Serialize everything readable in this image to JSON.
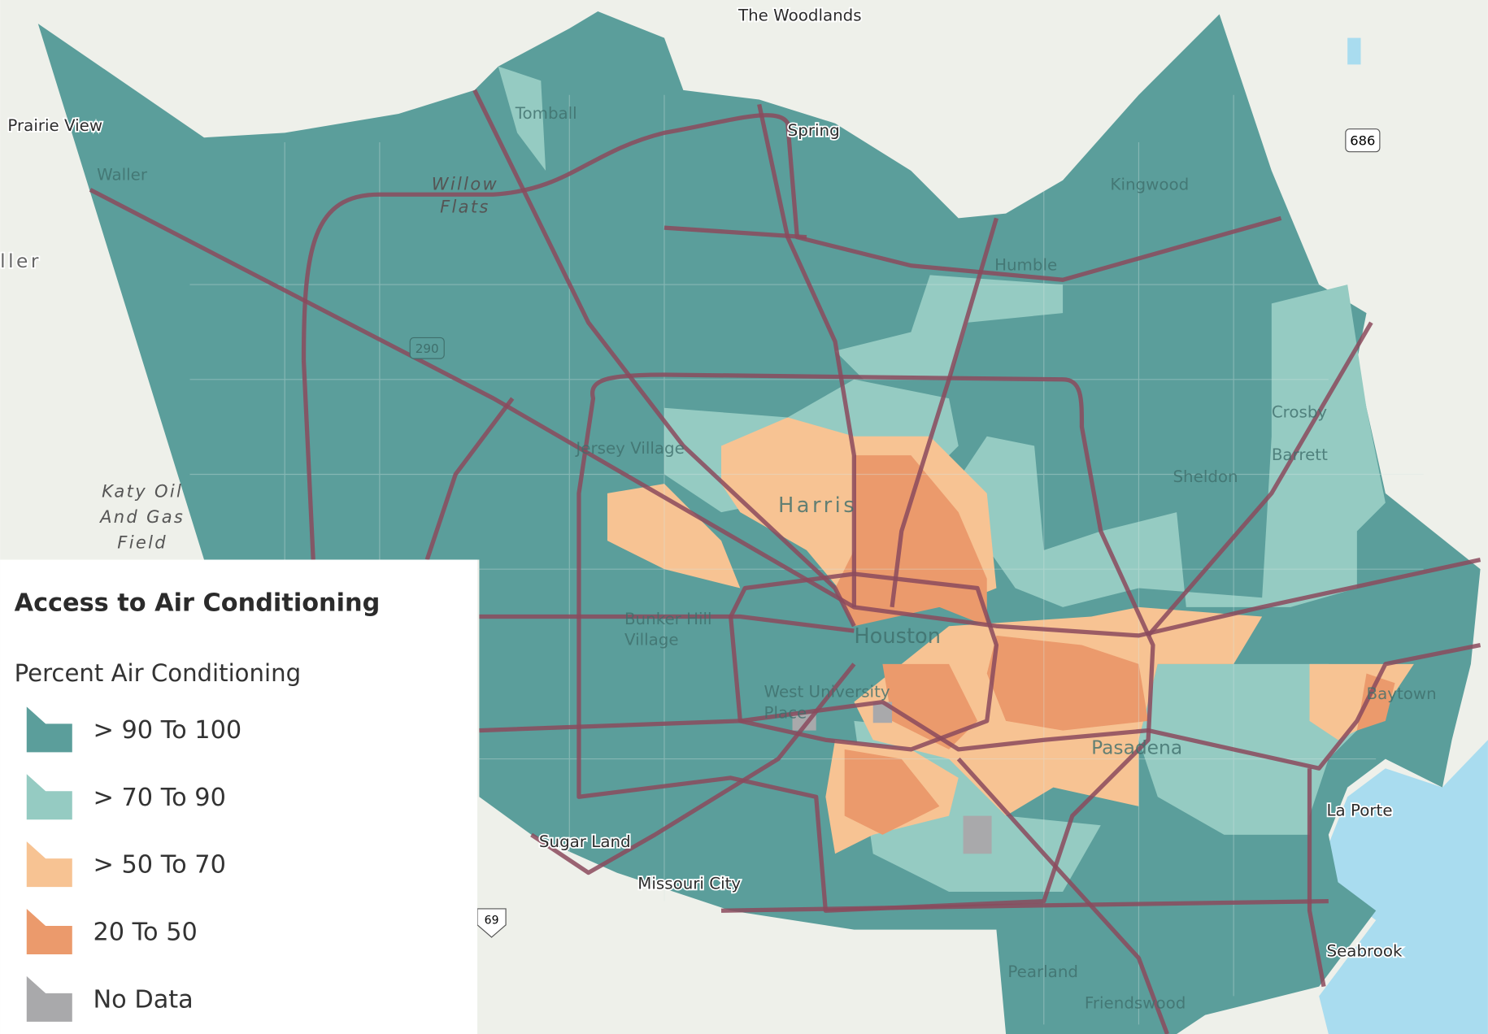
{
  "map": {
    "places": [
      "The Woodlands",
      "Prairie View",
      "Waller",
      "Tomball",
      "Spring",
      "Kingwood",
      "Humble",
      "Jersey Village",
      "Crosby",
      "Barrett",
      "Sheldon",
      "Harris",
      "Houston",
      "Bunker Hill",
      "Village",
      "West University",
      "Place",
      "Pasadena",
      "Baytown",
      "La Porte",
      "Sugar Land",
      "Missouri City",
      "Pearland",
      "Friendswood",
      "Seabrook",
      "ller"
    ],
    "shields": [
      "686",
      "290",
      "69"
    ],
    "features": [
      {
        "lines": [
          "Willow",
          "Flats"
        ]
      },
      {
        "lines": [
          "Katy Oil",
          "And Gas",
          "Field"
        ]
      }
    ]
  },
  "legend": {
    "title": "Access to Air Conditioning",
    "subtitle": "Percent Air Conditioning",
    "items": [
      {
        "label": "> 90 To 100",
        "color": "#5b9e9b"
      },
      {
        "label": "> 70 To 90",
        "color": "#95cbc2"
      },
      {
        "label": "> 50 To 70",
        "color": "#f7c393"
      },
      {
        "label": "20 To 50",
        "color": "#eb9a6c"
      },
      {
        "label": "No Data",
        "color": "#a9a9ab"
      }
    ]
  }
}
